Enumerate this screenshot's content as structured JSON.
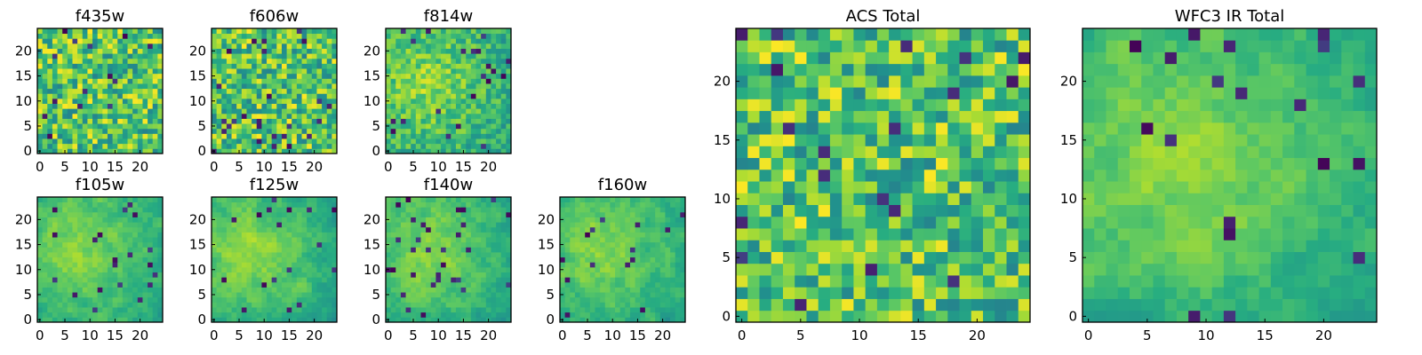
{
  "figure": {
    "background": "#ffffff"
  },
  "chart_data": [
    {
      "type": "heatmap",
      "title": "f435w",
      "grid_size": 25,
      "xlim": [
        0,
        24
      ],
      "ylim": [
        0,
        24
      ],
      "x_ticks": [
        "0",
        "5",
        "10",
        "15",
        "20"
      ],
      "y_ticks": [
        "0",
        "5",
        "10",
        "15",
        "20"
      ],
      "colormap": "viridis"
    },
    {
      "type": "heatmap",
      "title": "f606w",
      "grid_size": 25,
      "xlim": [
        0,
        24
      ],
      "ylim": [
        0,
        24
      ],
      "x_ticks": [
        "0",
        "5",
        "10",
        "15",
        "20"
      ],
      "y_ticks": [
        "0",
        "5",
        "10",
        "15",
        "20"
      ],
      "colormap": "viridis"
    },
    {
      "type": "heatmap",
      "title": "f814w",
      "grid_size": 25,
      "xlim": [
        0,
        24
      ],
      "ylim": [
        0,
        24
      ],
      "x_ticks": [
        "0",
        "5",
        "10",
        "15",
        "20"
      ],
      "y_ticks": [
        "0",
        "5",
        "10",
        "15",
        "20"
      ],
      "colormap": "viridis"
    },
    {
      "type": "heatmap",
      "title": "f105w",
      "grid_size": 25,
      "xlim": [
        0,
        24
      ],
      "ylim": [
        0,
        24
      ],
      "x_ticks": [
        "0",
        "5",
        "10",
        "15",
        "20"
      ],
      "y_ticks": [
        "0",
        "5",
        "10",
        "15",
        "20"
      ],
      "colormap": "viridis"
    },
    {
      "type": "heatmap",
      "title": "f125w",
      "grid_size": 25,
      "xlim": [
        0,
        24
      ],
      "ylim": [
        0,
        24
      ],
      "x_ticks": [
        "0",
        "5",
        "10",
        "15",
        "20"
      ],
      "y_ticks": [
        "0",
        "5",
        "10",
        "15",
        "20"
      ],
      "colormap": "viridis"
    },
    {
      "type": "heatmap",
      "title": "f140w",
      "grid_size": 25,
      "xlim": [
        0,
        24
      ],
      "ylim": [
        0,
        24
      ],
      "x_ticks": [
        "0",
        "5",
        "10",
        "15",
        "20"
      ],
      "y_ticks": [
        "0",
        "5",
        "10",
        "15",
        "20"
      ],
      "colormap": "viridis"
    },
    {
      "type": "heatmap",
      "title": "f160w",
      "grid_size": 25,
      "xlim": [
        0,
        24
      ],
      "ylim": [
        0,
        24
      ],
      "x_ticks": [
        "0",
        "5",
        "10",
        "15",
        "20"
      ],
      "y_ticks": [
        "0",
        "5",
        "10",
        "15",
        "20"
      ],
      "colormap": "viridis"
    },
    {
      "type": "heatmap",
      "title": "ACS Total",
      "grid_size": 25,
      "xlim": [
        0,
        24
      ],
      "ylim": [
        0,
        24
      ],
      "x_ticks": [
        "0",
        "5",
        "10",
        "15",
        "20"
      ],
      "y_ticks": [
        "0",
        "5",
        "10",
        "15",
        "20"
      ],
      "colormap": "viridis"
    },
    {
      "type": "heatmap",
      "title": "WFC3 IR Total",
      "grid_size": 25,
      "xlim": [
        0,
        24
      ],
      "ylim": [
        0,
        24
      ],
      "x_ticks": [
        "0",
        "5",
        "10",
        "15",
        "20"
      ],
      "y_ticks": [
        "0",
        "5",
        "10",
        "15",
        "20"
      ],
      "colormap": "viridis"
    }
  ]
}
